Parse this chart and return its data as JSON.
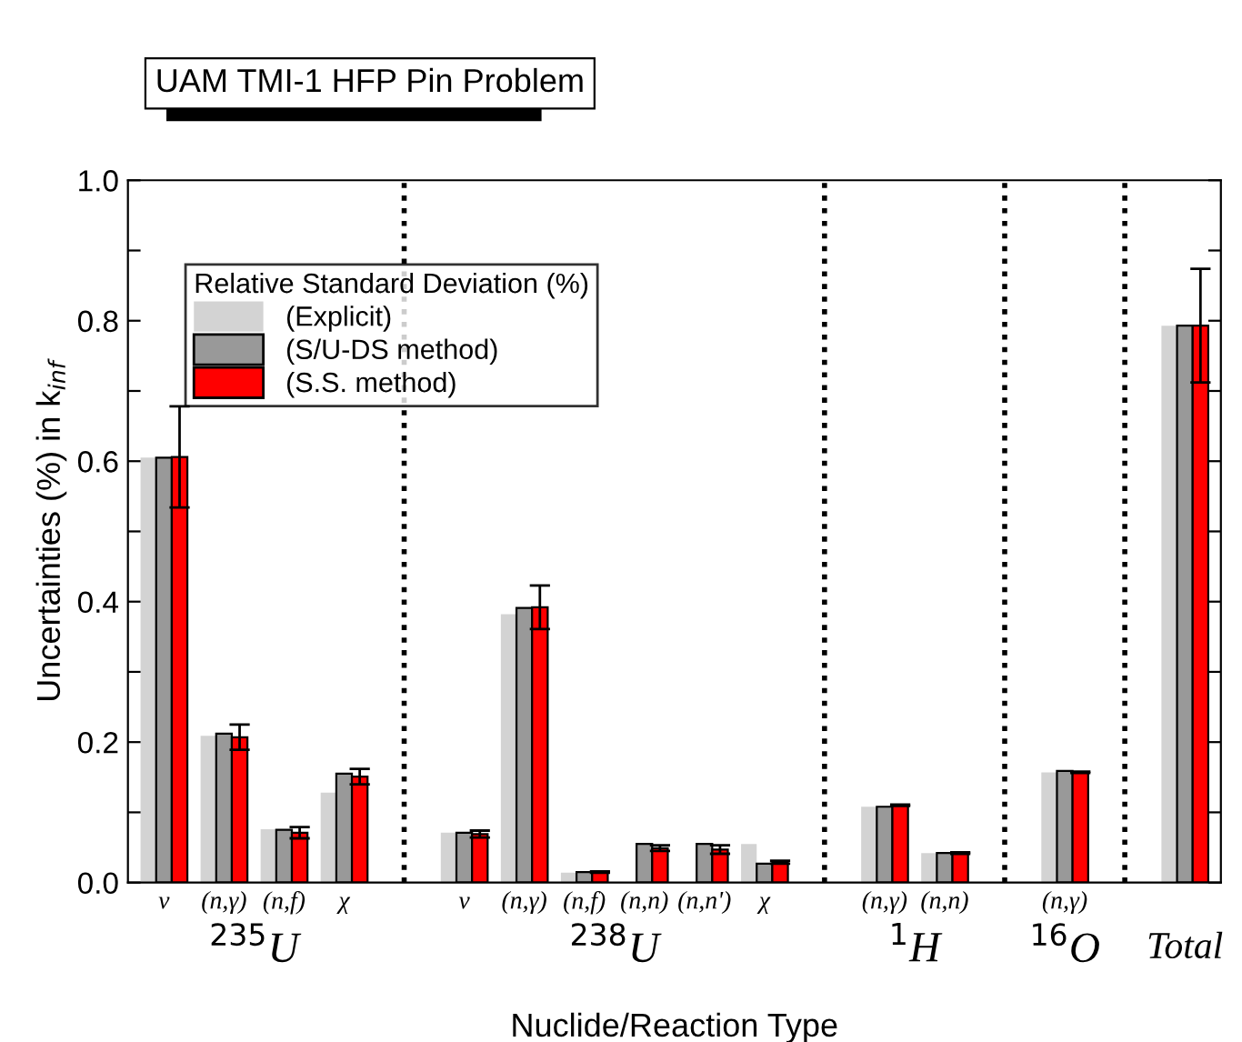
{
  "chart_data": {
    "type": "bar",
    "title": "UAM TMI-1 HFP Pin Problem",
    "xlabel": "Nuclide/Reaction Type",
    "ylabel": "Uncertainties (%) in k$_{inf}$",
    "legend_title": "Relative Standard Deviation (%)",
    "categories": [
      "ν",
      "(n,γ)",
      "(n,f)",
      "χ",
      null,
      "ν",
      "(n,γ)",
      "(n,f)",
      "(n,n)",
      "(n,n')",
      "χ",
      null,
      "(n,γ)",
      "(n,n)",
      null,
      "(n,γ)",
      null,
      "Total"
    ],
    "annotations": [
      "$^{235}$U",
      "$^{238}$U",
      "$^{1}$H",
      "$^{16}$O"
    ],
    "series": [
      {
        "name": "(Explicit)",
        "color": "#d3d3d3",
        "values": [
          0.605,
          0.209,
          0.076,
          0.128,
          null,
          0.071,
          0.382,
          0.014,
          null,
          null,
          0.055,
          null,
          0.108,
          0.042,
          null,
          0.157,
          null,
          0.793
        ]
      },
      {
        "name": "(S/U-DS method)",
        "color": "#999999",
        "values": [
          0.605,
          0.212,
          0.075,
          0.155,
          null,
          0.071,
          0.391,
          0.015,
          0.055,
          0.055,
          0.027,
          null,
          0.108,
          0.042,
          null,
          0.159,
          null,
          0.793
        ]
      },
      {
        "name": "(S.S. method)",
        "color": "#ff0000",
        "values": [
          0.606,
          0.207,
          0.071,
          0.151,
          null,
          0.069,
          0.392,
          0.015,
          0.049,
          0.047,
          0.029,
          null,
          0.11,
          0.042,
          null,
          0.157,
          null,
          0.793
        ],
        "errors": [
          0.072,
          0.018,
          0.008,
          0.011,
          null,
          0.005,
          0.031,
          0.001,
          0.004,
          0.006,
          0.002,
          null,
          0.001,
          0.001,
          null,
          0.001,
          null,
          0.081
        ]
      }
    ],
    "ylim": [
      0,
      1.0
    ],
    "yticks": [
      {
        "value": 0,
        "label": "0.0"
      },
      {
        "value": 0.1,
        "label": null
      },
      {
        "value": 0.2,
        "label": "0.2"
      },
      {
        "value": 0.3,
        "label": null
      },
      {
        "value": 0.4,
        "label": "0.4"
      },
      {
        "value": 0.5,
        "label": null
      },
      {
        "value": 0.6,
        "label": "0.6"
      },
      {
        "value": 0.7,
        "label": null
      },
      {
        "value": 0.8,
        "label": "0.8"
      },
      {
        "value": 0.9,
        "label": null
      },
      {
        "value": 1.0,
        "label": "1.0"
      }
    ],
    "legend": "top left",
    "grid": "x"
  }
}
